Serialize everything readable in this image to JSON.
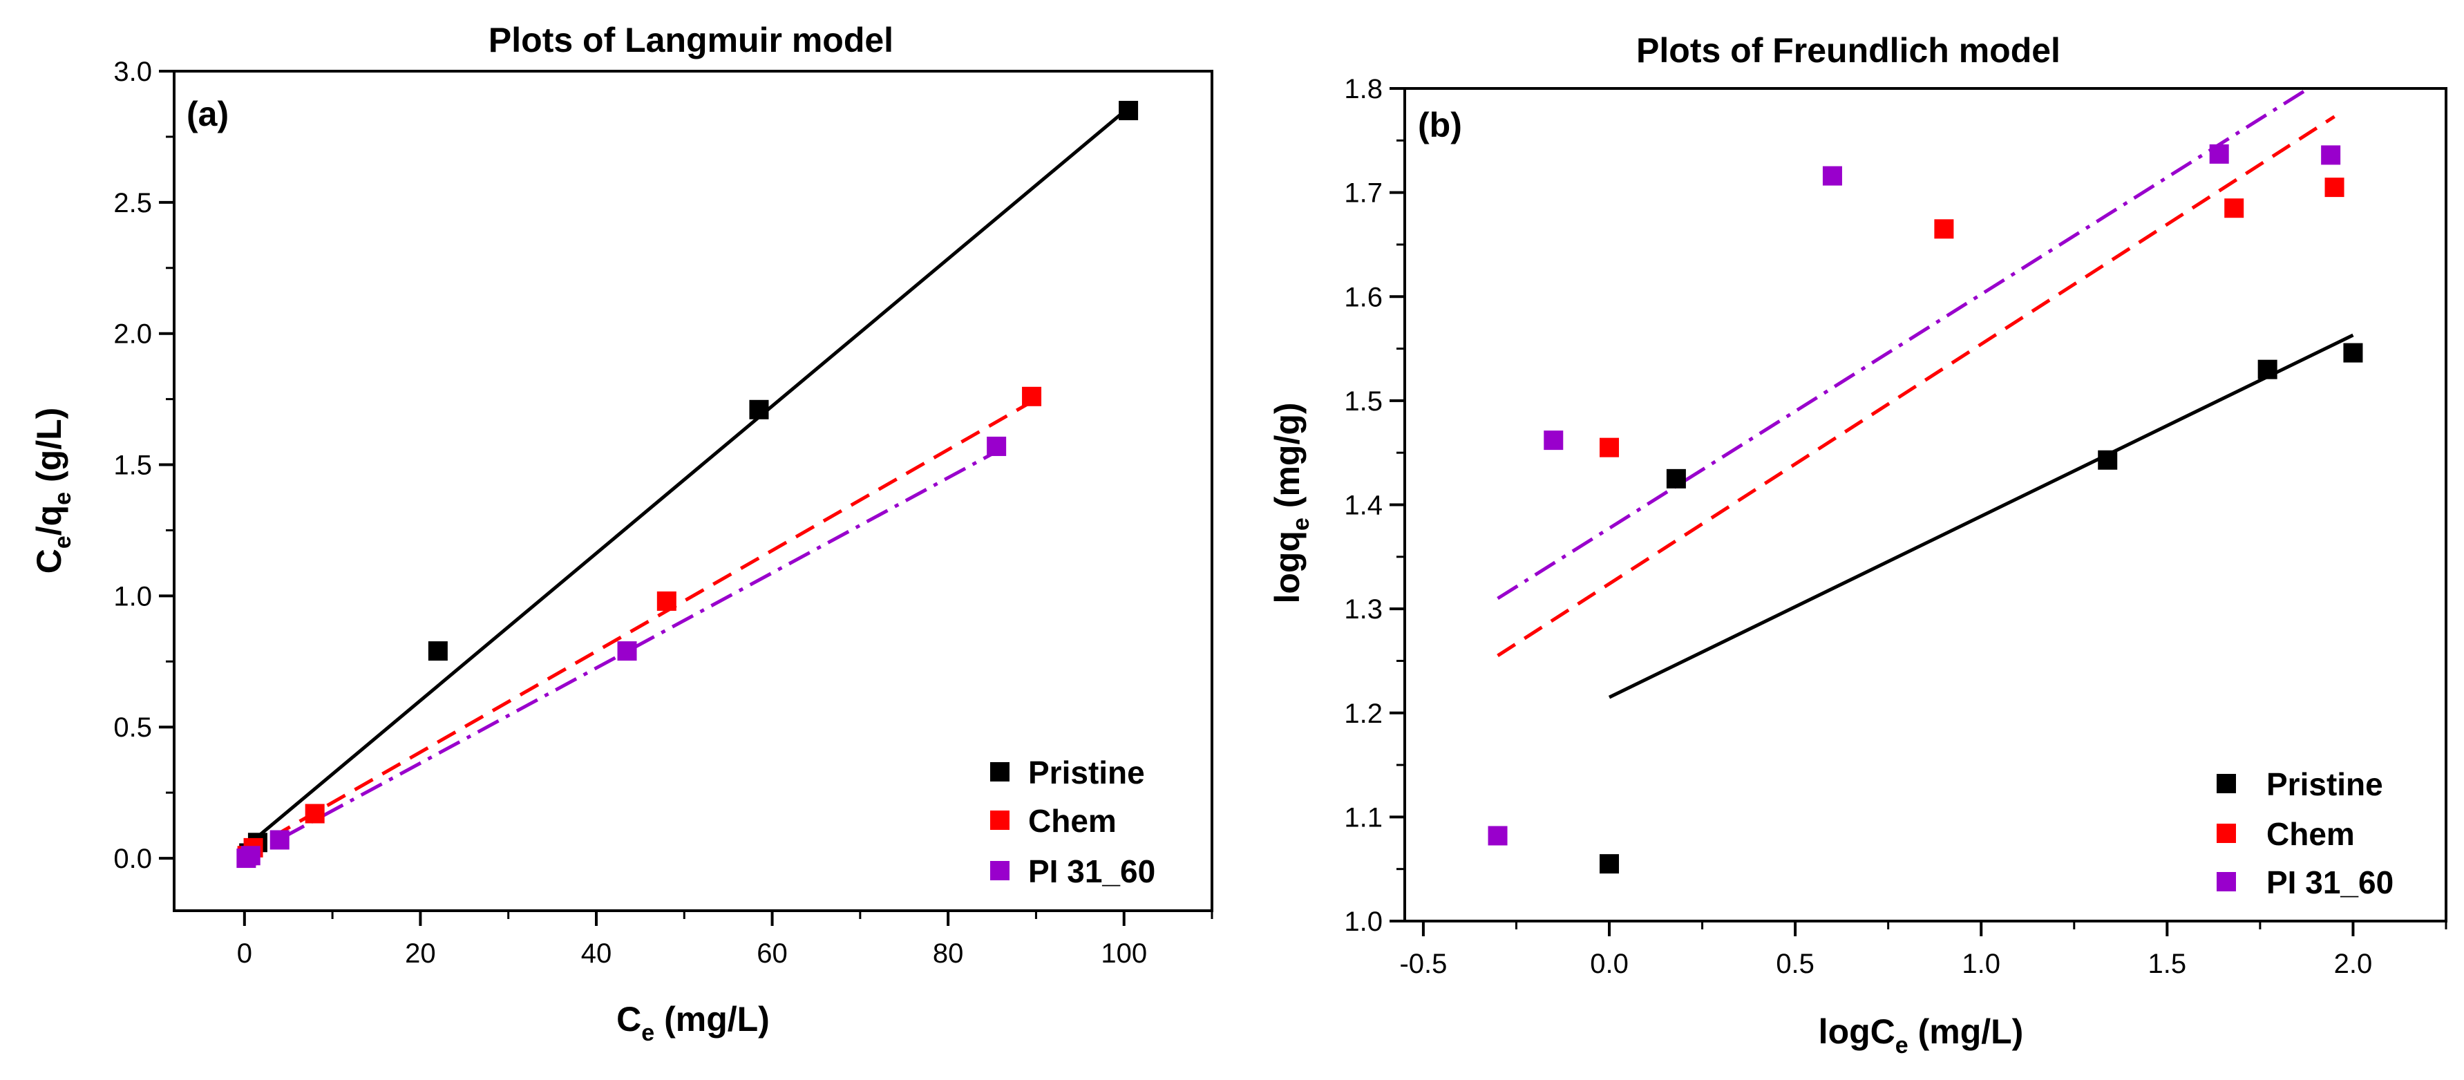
{
  "chart_data": [
    {
      "type": "scatter",
      "title": "Plots of Langmuir model",
      "panel_label": "(a)",
      "xlabel": {
        "main": "C",
        "sub": "e",
        "rest": " (mg/L)"
      },
      "ylabel": {
        "p1": "C",
        "s1": "e",
        "p2": "/q",
        "s2": "e",
        "p3": " (g/L)"
      },
      "xlim": [
        -8,
        110
      ],
      "ylim": [
        -0.2,
        3.0
      ],
      "xticks": [
        0,
        20,
        40,
        60,
        80,
        100
      ],
      "xtick_labels": [
        "0",
        "20",
        "40",
        "60",
        "80",
        "100"
      ],
      "yticks": [
        0.0,
        0.5,
        1.0,
        1.5,
        2.0,
        2.5,
        3.0
      ],
      "ytick_labels": [
        "0.0",
        "0.5",
        "1.0",
        "1.5",
        "2.0",
        "2.5",
        "3.0"
      ],
      "legend_position": "bottom-right",
      "series": [
        {
          "name": "Pristine",
          "color": "#000000",
          "line_style": "solid",
          "x": [
            0.5,
            1.5,
            22,
            58.5,
            100.5
          ],
          "y": [
            0.02,
            0.06,
            0.79,
            1.71,
            2.85
          ],
          "fit": [
            [
              0,
              0.04
            ],
            [
              100.5,
              2.86
            ]
          ]
        },
        {
          "name": "Chem",
          "color": "#ff0000",
          "line_style": "dashed",
          "x": [
            0.3,
            1.0,
            8,
            48,
            89.5
          ],
          "y": [
            0.01,
            0.04,
            0.17,
            0.98,
            1.76
          ],
          "fit": [
            [
              0,
              0.02
            ],
            [
              89.5,
              1.74
            ]
          ]
        },
        {
          "name": "PI 31_60",
          "color": "#9900cc",
          "line_style": "dashdot",
          "x": [
            0.2,
            0.7,
            4,
            43.5,
            85.5
          ],
          "y": [
            0.0,
            0.01,
            0.07,
            0.79,
            1.57
          ],
          "fit": [
            [
              0,
              0.0
            ],
            [
              85.5,
              1.55
            ]
          ]
        }
      ]
    },
    {
      "type": "scatter",
      "title": "Plots of Freundlich model",
      "panel_label": "(b)",
      "xlabel": {
        "main": "logC",
        "sub": "e",
        "rest": " (mg/L)"
      },
      "ylabel": {
        "p1": "logq",
        "s1": "e",
        "p2": " (mg/g)",
        "s2": "",
        "p3": ""
      },
      "xlim": [
        -0.55,
        2.25
      ],
      "ylim": [
        1.0,
        1.8
      ],
      "xticks": [
        -0.5,
        0.0,
        0.5,
        1.0,
        1.5,
        2.0
      ],
      "xtick_labels": [
        "-0.5",
        "0.0",
        "0.5",
        "1.0",
        "1.5",
        "2.0"
      ],
      "yticks": [
        1.0,
        1.1,
        1.2,
        1.3,
        1.4,
        1.5,
        1.6,
        1.7,
        1.8
      ],
      "ytick_labels": [
        "1.0",
        "1.1",
        "1.2",
        "1.3",
        "1.4",
        "1.5",
        "1.6",
        "1.7",
        "1.8"
      ],
      "legend_position": "bottom-right",
      "series": [
        {
          "name": "Pristine",
          "color": "#000000",
          "line_style": "solid",
          "x": [
            0.0,
            0.18,
            1.34,
            1.77,
            2.0
          ],
          "y": [
            1.055,
            1.425,
            1.443,
            1.53,
            1.546
          ],
          "fit": [
            [
              0.0,
              1.215
            ],
            [
              2.0,
              1.563
            ]
          ]
        },
        {
          "name": "Chem",
          "color": "#ff0000",
          "line_style": "dashed",
          "x": [
            0.0,
            0.9,
            1.68,
            1.95
          ],
          "y": [
            1.455,
            1.665,
            1.685,
            1.705
          ],
          "fit": [
            [
              -0.3,
              1.255
            ],
            [
              1.95,
              1.773
            ]
          ]
        },
        {
          "name": "PI 31_60",
          "color": "#9900cc",
          "line_style": "dashdot",
          "x": [
            -0.3,
            -0.15,
            0.6,
            1.64,
            1.94
          ],
          "y": [
            1.082,
            1.462,
            1.716,
            1.737,
            1.736
          ],
          "fit": [
            [
              -0.3,
              1.31
            ],
            [
              1.88,
              1.8
            ]
          ]
        }
      ]
    }
  ]
}
